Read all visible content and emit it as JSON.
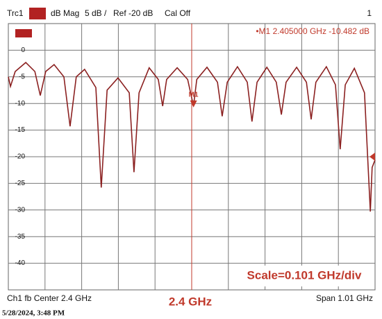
{
  "chart_data": {
    "type": "line",
    "header": [
      "Trc1",
      "dB Mag",
      "5 dB /",
      "Ref -20 dB",
      "Cal Off",
      "1"
    ],
    "x": [
      1.895,
      1.901,
      1.914,
      1.943,
      1.968,
      1.983,
      1.998,
      2.021,
      2.048,
      2.065,
      2.082,
      2.105,
      2.136,
      2.151,
      2.167,
      2.197,
      2.228,
      2.241,
      2.255,
      2.283,
      2.308,
      2.32,
      2.331,
      2.36,
      2.389,
      2.405,
      2.414,
      2.442,
      2.471,
      2.484,
      2.498,
      2.526,
      2.553,
      2.566,
      2.58,
      2.607,
      2.633,
      2.647,
      2.66,
      2.689,
      2.716,
      2.729,
      2.742,
      2.771,
      2.796,
      2.809,
      2.823,
      2.848,
      2.876,
      2.892,
      2.897,
      2.905
    ],
    "series": [
      {
        "color": "#8b2020",
        "values": [
          -5.0,
          -6.8,
          -4.0,
          -2.3,
          -4.0,
          -8.5,
          -4.0,
          -2.7,
          -5.0,
          -14.3,
          -5.0,
          -3.6,
          -7.0,
          -25.8,
          -7.5,
          -5.2,
          -8.0,
          -22.9,
          -8.0,
          -3.3,
          -5.5,
          -10.5,
          -5.5,
          -3.3,
          -5.5,
          -10.482,
          -5.5,
          -3.2,
          -6.0,
          -12.4,
          -6.0,
          -3.1,
          -6.0,
          -13.4,
          -6.0,
          -3.2,
          -6.0,
          -12.1,
          -6.0,
          -3.2,
          -6.0,
          -13.0,
          -6.0,
          -3.1,
          -6.5,
          -18.6,
          -6.5,
          -3.4,
          -8.0,
          -30.3,
          -22.0,
          -20.6
        ]
      }
    ],
    "xlim": [
      1.895,
      2.905
    ],
    "ylim": [
      -45,
      5
    ],
    "yticks": [
      0,
      -5,
      -10,
      -15,
      -20,
      -25,
      -30,
      -35,
      -40
    ],
    "ref_level": -20,
    "marker": {
      "name": "M1",
      "x": 2.405,
      "y": -10.482,
      "readout": "•M1  2.405000 GHz  -10.482 dB"
    },
    "vline": {
      "x": 2.4,
      "label": "2.4 GHz"
    },
    "scale_note": "Scale=0.101 GHz/div",
    "footer_left": "Ch1  fb  Center  2.4 GHz",
    "footer_right": "Span  1.01 GHz",
    "timestamp": "5/28/2024, 3:48 PM"
  }
}
